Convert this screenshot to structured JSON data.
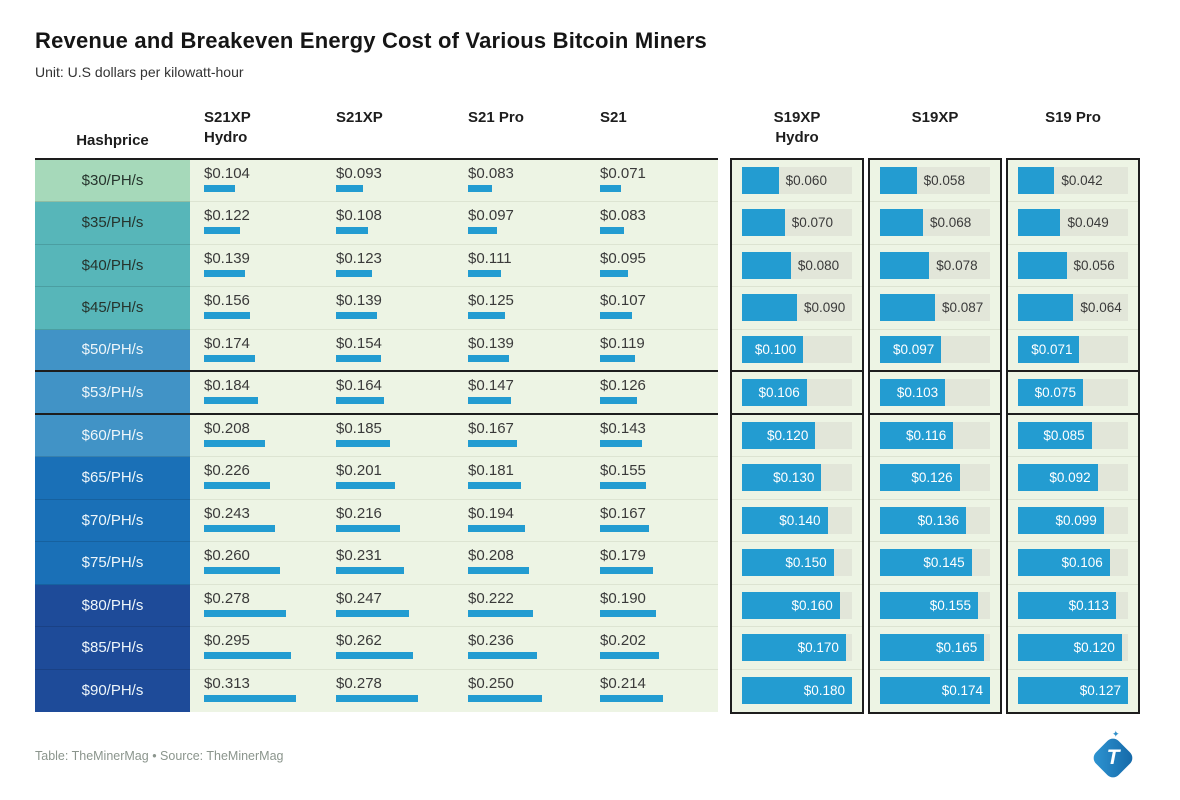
{
  "title": "Revenue and Breakeven Energy Cost of Various Bitcoin Miners",
  "subtitle": "Unit: U.S dollars per kilowatt-hour",
  "footer": {
    "credit": "Table: TheMinerMag • Source: TheMinerMag"
  },
  "logo": {
    "name": "TheMinerMag logo",
    "letter": "T",
    "spark": "✦"
  },
  "colors": {
    "bar_blue": "#239cd1",
    "cell_background": "#edf4e4",
    "bar_track": "#e2e6d9",
    "thick_border": "#1d1d1d",
    "tier_mint": "#a6d9ba",
    "tier_teal": "#57b6b9",
    "tier_blue": "#4193c6",
    "tier_strong_blue": "#1a70b7",
    "tier_navy": "#1e4b99"
  },
  "chart_data": {
    "type": "table",
    "title": "Revenue and Breakeven Energy Cost of Various Bitcoin Miners",
    "unit": "U.S dollars per kilowatt-hour",
    "columns": {
      "hashprice": "Hashprice",
      "underline": [
        "S21XP\nHydro",
        "S21XP",
        "S21 Pro",
        "S21"
      ],
      "bar": [
        "S19XP\nHydro",
        "S19XP",
        "S19 Pro"
      ]
    },
    "value_prefix": "$",
    "underline_bar_max": 0.313,
    "rows": [
      {
        "label": "$30/PH/s",
        "color": "#a6d9ba",
        "text_dark": true,
        "thick_below": false,
        "values": [
          0.104,
          0.093,
          0.083,
          0.071
        ],
        "bars": [
          0.06,
          0.058,
          0.042
        ]
      },
      {
        "label": "$35/PH/s",
        "color": "#57b6b9",
        "text_dark": true,
        "thick_below": false,
        "values": [
          0.122,
          0.108,
          0.097,
          0.083
        ],
        "bars": [
          0.07,
          0.068,
          0.049
        ]
      },
      {
        "label": "$40/PH/s",
        "color": "#57b6b9",
        "text_dark": true,
        "thick_below": false,
        "values": [
          0.139,
          0.123,
          0.111,
          0.095
        ],
        "bars": [
          0.08,
          0.078,
          0.056
        ]
      },
      {
        "label": "$45/PH/s",
        "color": "#57b6b9",
        "text_dark": true,
        "thick_below": false,
        "values": [
          0.156,
          0.139,
          0.125,
          0.107
        ],
        "bars": [
          0.09,
          0.087,
          0.064
        ]
      },
      {
        "label": "$50/PH/s",
        "color": "#4193c6",
        "text_dark": false,
        "thick_below": true,
        "values": [
          0.174,
          0.154,
          0.139,
          0.119
        ],
        "bars": [
          0.1,
          0.097,
          0.071
        ]
      },
      {
        "label": "$53/PH/s",
        "color": "#4193c6",
        "text_dark": false,
        "thick_below": true,
        "values": [
          0.184,
          0.164,
          0.147,
          0.126
        ],
        "bars": [
          0.106,
          0.103,
          0.075
        ]
      },
      {
        "label": "$60/PH/s",
        "color": "#4193c6",
        "text_dark": false,
        "thick_below": false,
        "values": [
          0.208,
          0.185,
          0.167,
          0.143
        ],
        "bars": [
          0.12,
          0.116,
          0.085
        ]
      },
      {
        "label": "$65/PH/s",
        "color": "#1a70b7",
        "text_dark": false,
        "thick_below": false,
        "values": [
          0.226,
          0.201,
          0.181,
          0.155
        ],
        "bars": [
          0.13,
          0.126,
          0.092
        ]
      },
      {
        "label": "$70/PH/s",
        "color": "#1a70b7",
        "text_dark": false,
        "thick_below": false,
        "values": [
          0.243,
          0.216,
          0.194,
          0.167
        ],
        "bars": [
          0.14,
          0.136,
          0.099
        ]
      },
      {
        "label": "$75/PH/s",
        "color": "#1a70b7",
        "text_dark": false,
        "thick_below": false,
        "values": [
          0.26,
          0.231,
          0.208,
          0.179
        ],
        "bars": [
          0.15,
          0.145,
          0.106
        ]
      },
      {
        "label": "$80/PH/s",
        "color": "#1e4b99",
        "text_dark": false,
        "thick_below": false,
        "values": [
          0.278,
          0.247,
          0.222,
          0.19
        ],
        "bars": [
          0.16,
          0.155,
          0.113
        ]
      },
      {
        "label": "$85/PH/s",
        "color": "#1e4b99",
        "text_dark": false,
        "thick_below": false,
        "values": [
          0.295,
          0.262,
          0.236,
          0.202
        ],
        "bars": [
          0.17,
          0.165,
          0.12
        ]
      },
      {
        "label": "$90/PH/s",
        "color": "#1e4b99",
        "text_dark": false,
        "thick_below": false,
        "values": [
          0.313,
          0.278,
          0.25,
          0.214
        ],
        "bars": [
          0.18,
          0.174,
          0.127
        ]
      }
    ]
  }
}
